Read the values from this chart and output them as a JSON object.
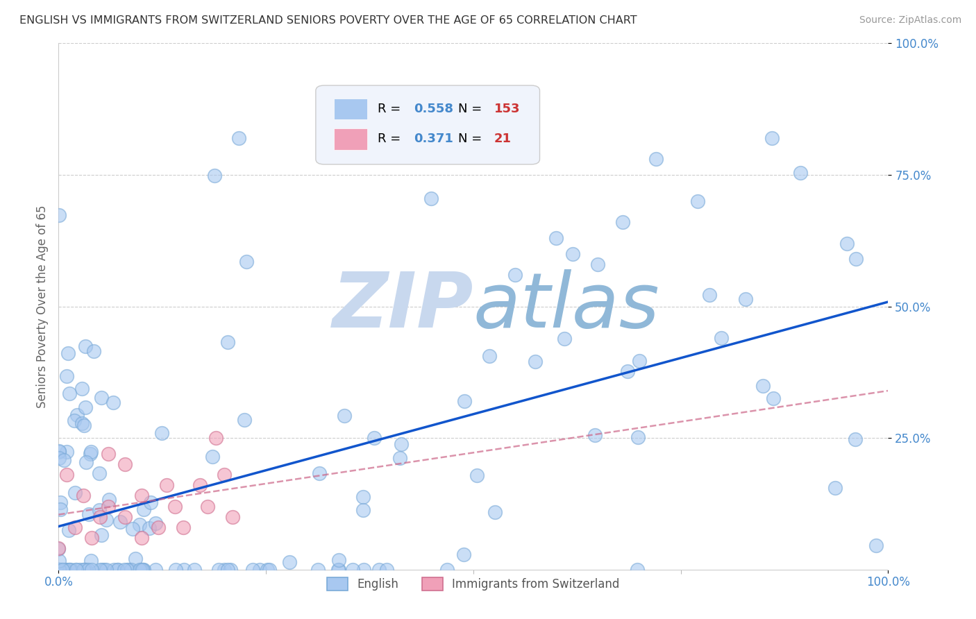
{
  "title": "ENGLISH VS IMMIGRANTS FROM SWITZERLAND SENIORS POVERTY OVER THE AGE OF 65 CORRELATION CHART",
  "source_text": "Source: ZipAtlas.com",
  "ylabel": "Seniors Poverty Over the Age of 65",
  "watermark": "ZIPatlas",
  "series": [
    {
      "label": "English",
      "R": 0.558,
      "N": 153,
      "circle_color": "#a8c8f0",
      "line_color": "#1155cc",
      "line_style": "-"
    },
    {
      "label": "Immigrants from Switzerland",
      "R": 0.371,
      "N": 21,
      "circle_color": "#f0a0b8",
      "line_color": "#cc6688",
      "line_style": "--"
    }
  ],
  "xlim": [
    0.0,
    1.0
  ],
  "ylim": [
    0.0,
    1.0
  ],
  "xtick_positions": [
    0.0,
    1.0
  ],
  "xtick_labels": [
    "0.0%",
    "100.0%"
  ],
  "ytick_positions": [
    0.25,
    0.5,
    0.75,
    1.0
  ],
  "ytick_labels": [
    "25.0%",
    "50.0%",
    "75.0%",
    "100.0%"
  ],
  "background_color": "#ffffff",
  "grid_color": "#cccccc",
  "title_color": "#333333",
  "tick_color": "#4488cc",
  "watermark_color_zip": "#c8d8ee",
  "watermark_color_atlas": "#90b8d8",
  "R_N_label_color": "#4488cc",
  "legend_box_color": "#f0f4fc"
}
